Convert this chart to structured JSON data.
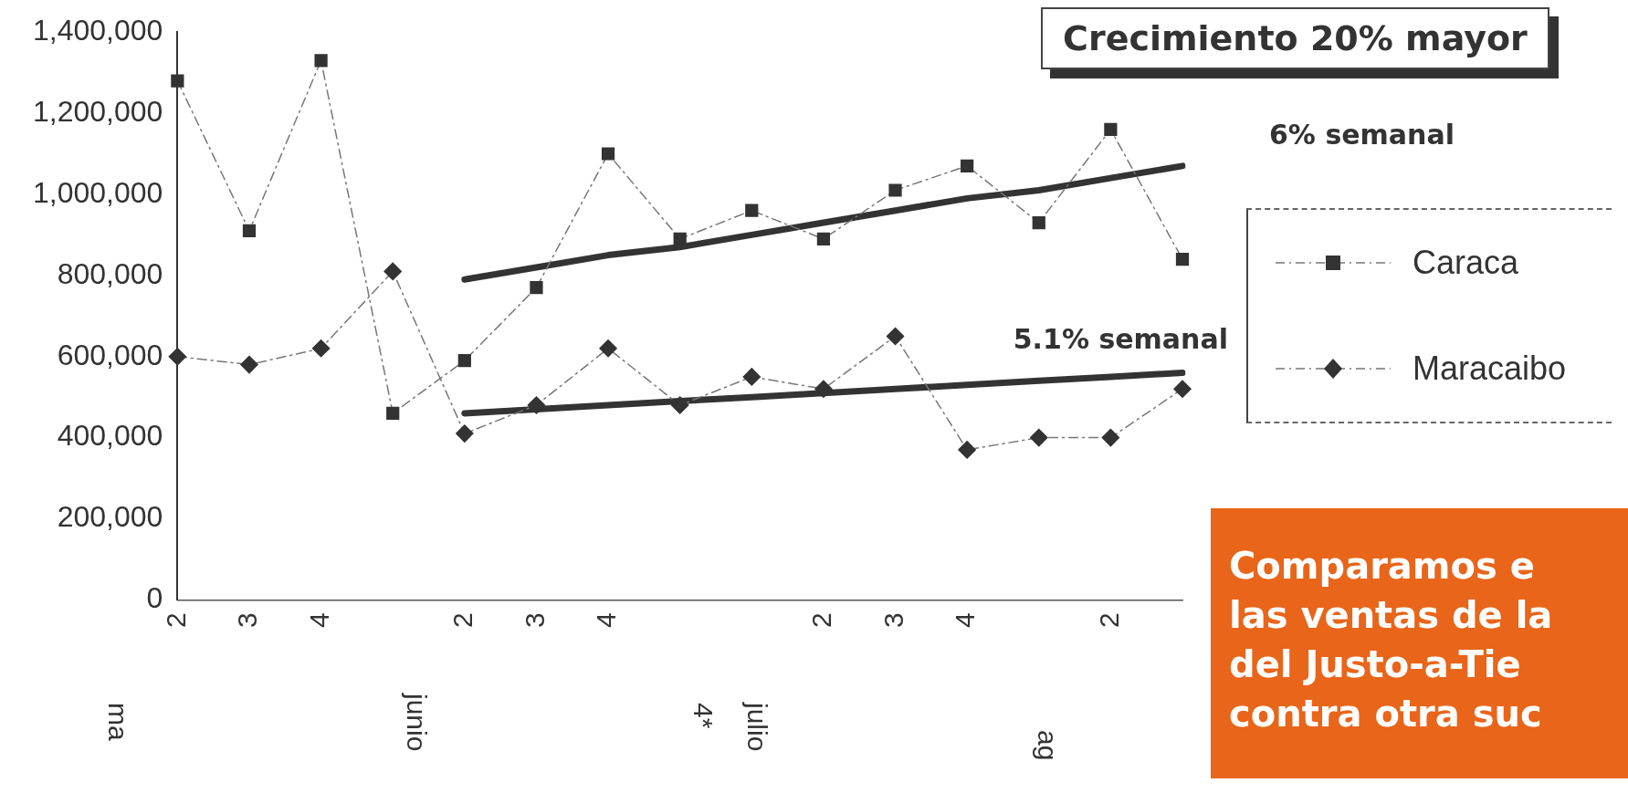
{
  "chart_data": {
    "type": "line",
    "title": "Crecimiento 20% mayor",
    "categories": [
      "2",
      "3",
      "4",
      null,
      "2",
      "3",
      "4",
      null,
      null,
      "2",
      "3",
      "4",
      null,
      "2",
      null
    ],
    "series": [
      {
        "name": "Caraca",
        "color": "#333333",
        "marker": "square",
        "values": [
          1280000,
          910000,
          1330000,
          460000,
          590000,
          770000,
          1100000,
          890000,
          960000,
          890000,
          1010000,
          1070000,
          930000,
          1160000,
          840000
        ]
      },
      {
        "name": "Maracaibo",
        "color": "#333333",
        "marker": "diamond",
        "values": [
          600000,
          580000,
          620000,
          810000,
          410000,
          480000,
          620000,
          480000,
          550000,
          520000,
          650000,
          370000,
          400000,
          400000,
          520000
        ]
      },
      {
        "color": "#333333",
        "marker": "none",
        "line_style": "solid",
        "values": [
          null,
          null,
          null,
          null,
          790000,
          820000,
          850000,
          870000,
          900000,
          930000,
          960000,
          990000,
          1010000,
          1040000,
          1070000
        ]
      },
      {
        "color": "#333333",
        "marker": "none",
        "line_style": "solid",
        "values": [
          null,
          null,
          null,
          null,
          460000,
          470000,
          480000,
          490000,
          500000,
          510000,
          520000,
          530000,
          540000,
          550000,
          560000
        ]
      }
    ],
    "ylim": [
      0,
      1400000
    ],
    "yticks": [
      {
        "value": 0,
        "label": "0"
      },
      {
        "value": 200000,
        "label": "200,000"
      },
      {
        "value": 400000,
        "label": "400,000"
      },
      {
        "value": 600000,
        "label": "600,000"
      },
      {
        "value": 800000,
        "label": "800,000"
      },
      {
        "value": 1000000,
        "label": "1,000,000"
      },
      {
        "value": 1200000,
        "label": "1,200,000"
      },
      {
        "value": 1400000,
        "label": "1,400,000"
      }
    ],
    "grid": false,
    "legend": "right",
    "line_style": "dashed",
    "annotations": [
      "6% semanal",
      "5.1% semanal",
      "ma",
      "junio",
      "4*",
      "julio",
      "ag",
      "Comparamos e\nlas ventas de la\ndel Justo-a-Tie\ncontra otra suc"
    ]
  }
}
